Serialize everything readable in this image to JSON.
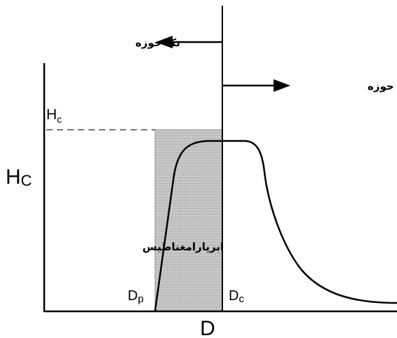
{
  "diagram": {
    "y_axis_label": "H",
    "y_axis_label_sub": "C",
    "hc_line_label": "H",
    "hc_line_label_sub": "c",
    "x_axis_label": "D",
    "dp_label": "D",
    "dp_label_sub": "p",
    "dc_label": "D",
    "dc_label_sub": "c",
    "single_domain_label": "تک حوزه",
    "multi_domain_label": "چند حوزه",
    "superparamagnetic_label": "ابرپارامغناطیس"
  },
  "colors": {
    "axis": "#000000",
    "dashed_line": "#777777",
    "shaded_region": "#bfbfbf",
    "curve": "#000000"
  }
}
